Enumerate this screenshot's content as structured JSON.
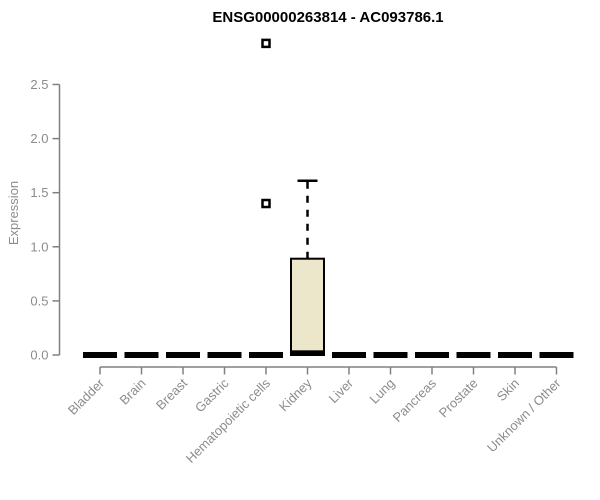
{
  "chart_data": {
    "type": "boxplot",
    "title": "ENSG00000263814 - AC093786.1",
    "ylabel": "Expression",
    "xlabel": "",
    "ylim": [
      0,
      2.5
    ],
    "yticks": [
      0.0,
      0.5,
      1.0,
      1.5,
      2.0,
      2.5
    ],
    "ytick_labels": [
      "0.0",
      "0.5",
      "1.0",
      "1.5",
      "2.0",
      "2.5"
    ],
    "grid": false,
    "legend": "none",
    "x_labels_rotation_deg": 45,
    "outlier_marker": "open-square",
    "categories": [
      "Bladder",
      "Brain",
      "Breast",
      "Gastric",
      "Hematopoietic cells",
      "Kidney",
      "Liver",
      "Lung",
      "Pancreas",
      "Prostate",
      "Skin",
      "Unknown / Other"
    ],
    "boxes": [
      {
        "category": "Bladder",
        "q1": 0,
        "median": 0,
        "q3": 0,
        "whisker_low": 0,
        "whisker_high": 0,
        "outliers": []
      },
      {
        "category": "Brain",
        "q1": 0,
        "median": 0,
        "q3": 0,
        "whisker_low": 0,
        "whisker_high": 0,
        "outliers": []
      },
      {
        "category": "Breast",
        "q1": 0,
        "median": 0,
        "q3": 0,
        "whisker_low": 0,
        "whisker_high": 0,
        "outliers": []
      },
      {
        "category": "Gastric",
        "q1": 0,
        "median": 0,
        "q3": 0,
        "whisker_low": 0,
        "whisker_high": 0,
        "outliers": []
      },
      {
        "category": "Hematopoietic cells",
        "q1": 0,
        "median": 0,
        "q3": 0,
        "whisker_low": 0,
        "whisker_high": 0,
        "outliers": [
          1.4,
          2.88
        ]
      },
      {
        "category": "Kidney",
        "q1": 0,
        "median": 0.02,
        "q3": 0.89,
        "whisker_low": 0,
        "whisker_high": 1.61,
        "outliers": []
      },
      {
        "category": "Liver",
        "q1": 0,
        "median": 0,
        "q3": 0,
        "whisker_low": 0,
        "whisker_high": 0,
        "outliers": []
      },
      {
        "category": "Lung",
        "q1": 0,
        "median": 0,
        "q3": 0,
        "whisker_low": 0,
        "whisker_high": 0,
        "outliers": []
      },
      {
        "category": "Pancreas",
        "q1": 0,
        "median": 0,
        "q3": 0,
        "whisker_low": 0,
        "whisker_high": 0,
        "outliers": []
      },
      {
        "category": "Prostate",
        "q1": 0,
        "median": 0,
        "q3": 0,
        "whisker_low": 0,
        "whisker_high": 0,
        "outliers": []
      },
      {
        "category": "Skin",
        "q1": 0,
        "median": 0,
        "q3": 0,
        "whisker_low": 0,
        "whisker_high": 0,
        "outliers": []
      },
      {
        "category": "Unknown / Other",
        "q1": 0,
        "median": 0,
        "q3": 0,
        "whisker_low": 0,
        "whisker_high": 0,
        "outliers": []
      }
    ],
    "colors": {
      "background": "#ffffff",
      "box_fill": "#ECE7CB",
      "box_stroke": "#000000",
      "median": "#000000",
      "whisker": "#000000",
      "axis_line": "#808080",
      "tick_text": "#8c8c8c",
      "title_text": "#000000"
    }
  }
}
